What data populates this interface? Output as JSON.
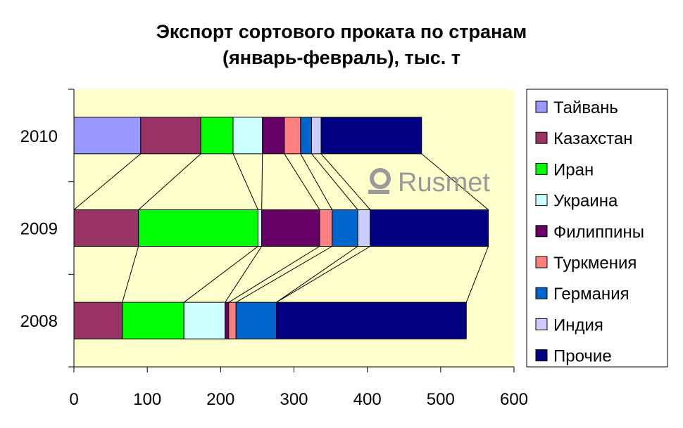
{
  "chart_data": {
    "type": "bar",
    "orientation": "horizontal",
    "stacked": true,
    "title": "Экспорт сортового проката по странам\n(январь-февраль), тыс. т",
    "title_lines": [
      "Экспорт сортового проката по странам",
      "(январь-февраль), тыс. т"
    ],
    "categories": [
      "2010",
      "2009",
      "2008"
    ],
    "xlim": [
      0,
      600
    ],
    "xticks": [
      "0",
      "100",
      "200",
      "300",
      "400",
      "500",
      "600"
    ],
    "xtick_values": [
      0,
      100,
      200,
      300,
      400,
      500,
      600
    ],
    "series_lines": true,
    "legend_position": "right",
    "series": [
      {
        "name": "Тайвань",
        "color": "#9999ff",
        "values": [
          91,
          0,
          0
        ]
      },
      {
        "name": "Казахстан",
        "color": "#993366",
        "values": [
          82,
          88,
          66
        ]
      },
      {
        "name": "Иран",
        "color": "#00ff00",
        "values": [
          44,
          163,
          84
        ]
      },
      {
        "name": "Украина",
        "color": "#ccffff",
        "values": [
          40,
          5,
          56
        ]
      },
      {
        "name": "Филиппины",
        "color": "#660066",
        "values": [
          30,
          79,
          5
        ]
      },
      {
        "name": "Туркмения",
        "color": "#ff8080",
        "values": [
          22,
          17,
          10
        ]
      },
      {
        "name": "Германия",
        "color": "#0066cc",
        "values": [
          15,
          35,
          55
        ]
      },
      {
        "name": "Индия",
        "color": "#ccccff",
        "values": [
          13,
          17,
          0
        ]
      },
      {
        "name": "Прочие",
        "color": "#000080",
        "values": [
          137,
          161,
          259
        ]
      }
    ]
  },
  "watermark": {
    "text": "Rusmet",
    "icon": "rusmet-logo-icon"
  },
  "colors": {
    "plot_background": "#ffffcc",
    "outline": "#000000"
  }
}
